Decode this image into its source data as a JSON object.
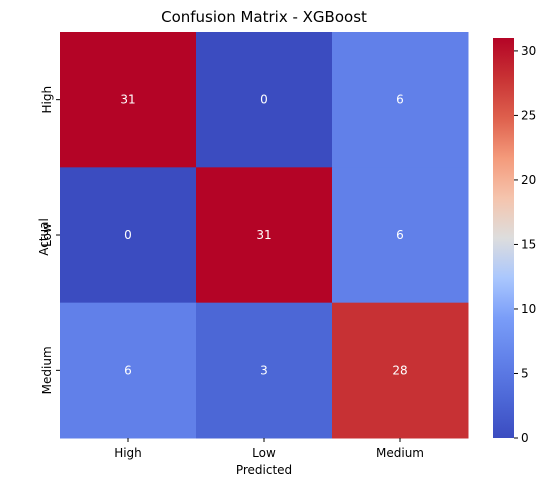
{
  "chart_data": {
    "type": "heatmap",
    "title": "Confusion Matrix - XGBoost",
    "xlabel": "Predicted",
    "ylabel": "Actual",
    "x_categories": [
      "High",
      "Low",
      "Medium"
    ],
    "y_categories": [
      "High",
      "Low",
      "Medium"
    ],
    "values": [
      [
        31,
        0,
        6
      ],
      [
        0,
        31,
        6
      ],
      [
        6,
        3,
        28
      ]
    ],
    "colormap": "coolwarm",
    "colorbar": {
      "range": [
        0,
        31
      ],
      "ticks": [
        0,
        5,
        10,
        15,
        20,
        25,
        30
      ],
      "tick_labels": [
        "0",
        "5",
        "10",
        "15",
        "20",
        "25",
        "30"
      ]
    },
    "annot_light_color": "#ffffff",
    "annot_dark_color": "#262626"
  }
}
